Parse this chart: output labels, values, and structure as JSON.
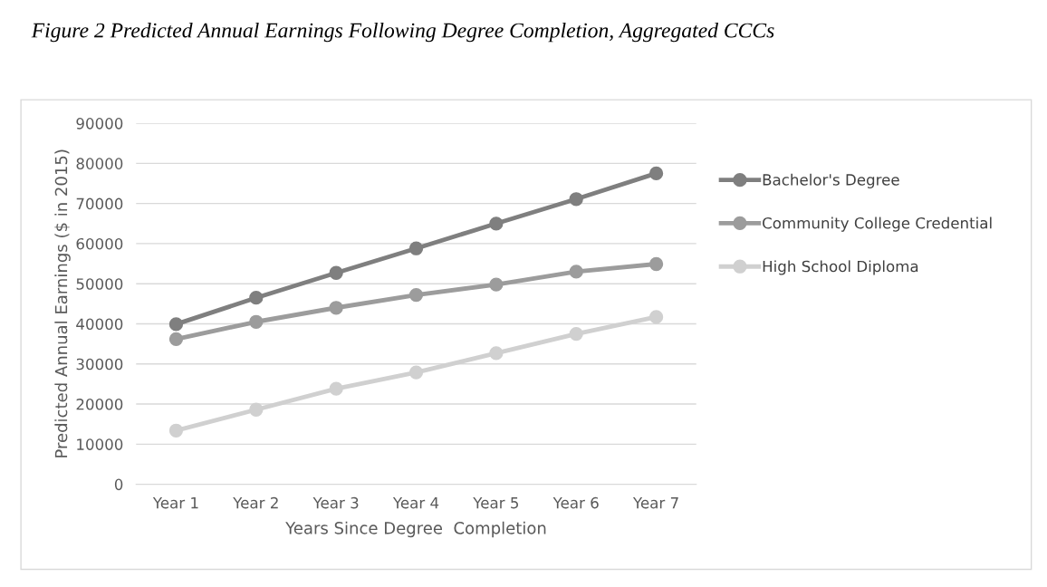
{
  "chart_data": {
    "type": "line",
    "title": "Figure 2 Predicted Annual Earnings Following Degree Completion, Aggregated CCCs",
    "xlabel": "Years Since Degree  Completion",
    "ylabel": "Predicted Annual Earnings ($ in 2015)",
    "categories": [
      "Year 1",
      "Year 2",
      "Year 3",
      "Year 4",
      "Year 5",
      "Year 6",
      "Year 7"
    ],
    "series": [
      {
        "name": "Bachelor's Degree",
        "color": "#7f7f7f",
        "values": [
          39900,
          46500,
          52700,
          58800,
          65000,
          71100,
          77500
        ]
      },
      {
        "name": "Community College Credential",
        "color": "#9c9c9c",
        "values": [
          36200,
          40500,
          44000,
          47200,
          49800,
          53000,
          54900
        ]
      },
      {
        "name": "High School Diploma",
        "color": "#d0d0d0",
        "values": [
          13400,
          18600,
          23800,
          27900,
          32700,
          37500,
          41700
        ]
      }
    ],
    "ylim": [
      0,
      90000
    ],
    "yticks": [
      0,
      10000,
      20000,
      30000,
      40000,
      50000,
      60000,
      70000,
      80000,
      90000
    ],
    "grid": "y",
    "legend": "right",
    "marker": "circle",
    "line_style": "solid"
  }
}
